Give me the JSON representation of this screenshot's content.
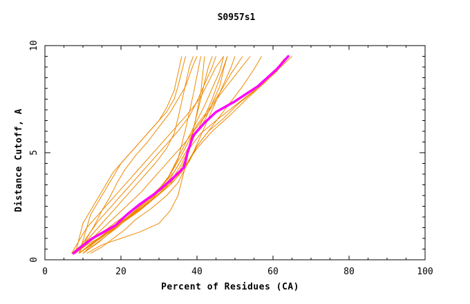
{
  "chart_data": {
    "type": "line",
    "title": "S0957s1",
    "xlabel": "Percent of Residues (CA)",
    "ylabel": "Distance Cutoff, A",
    "xlim": [
      0,
      100
    ],
    "ylim": [
      0,
      10
    ],
    "x_ticks": [
      "0",
      "20",
      "40",
      "60",
      "80",
      "100"
    ],
    "y_ticks": [
      "0",
      "5",
      "10"
    ],
    "grid": false,
    "legend": "none",
    "colors": {
      "highlight": "#ff00ff",
      "others": "#ee8800"
    },
    "highlight": {
      "x": [
        7.5,
        9.5,
        12.5,
        15.5,
        18.5,
        21.5,
        25,
        29,
        33,
        36.5,
        37.5,
        39,
        42,
        45,
        50,
        56,
        61,
        64
      ],
      "y": [
        0.3,
        0.6,
        1.0,
        1.3,
        1.6,
        2.1,
        2.6,
        3.1,
        3.7,
        4.3,
        5.0,
        5.8,
        6.4,
        6.9,
        7.4,
        8.1,
        8.9,
        9.5
      ]
    },
    "series": [
      {
        "x": [
          7,
          9,
          12,
          16,
          20,
          24,
          27,
          30,
          34,
          37,
          40,
          44,
          49,
          53,
          58,
          62,
          65
        ],
        "y": [
          0.3,
          0.6,
          1.0,
          1.4,
          1.8,
          2.2,
          2.7,
          3.2,
          3.7,
          4.4,
          5.2,
          6.0,
          6.8,
          7.5,
          8.3,
          9.0,
          9.5
        ]
      },
      {
        "x": [
          8,
          10,
          13,
          16,
          19,
          23,
          27,
          31,
          34,
          36,
          38,
          41,
          45,
          50,
          55,
          60,
          63
        ],
        "y": [
          0.3,
          0.6,
          1.0,
          1.4,
          1.8,
          2.3,
          2.8,
          3.3,
          3.9,
          4.5,
          5.2,
          5.9,
          6.5,
          7.2,
          7.9,
          8.7,
          9.4
        ]
      },
      {
        "x": [
          9,
          11,
          14,
          17,
          21,
          25,
          29,
          32,
          35,
          38,
          40,
          43,
          47,
          51,
          56,
          61,
          64
        ],
        "y": [
          0.3,
          0.6,
          1.0,
          1.4,
          1.9,
          2.4,
          2.9,
          3.4,
          4.0,
          4.6,
          5.3,
          6.0,
          6.6,
          7.3,
          8.0,
          8.8,
          9.5
        ]
      },
      {
        "x": [
          8,
          11,
          15,
          19,
          23,
          27,
          30,
          33,
          35,
          37,
          39,
          42,
          44,
          46,
          47,
          48
        ],
        "y": [
          0.3,
          0.7,
          1.1,
          1.6,
          2.1,
          2.6,
          3.2,
          3.8,
          4.4,
          5.0,
          5.7,
          6.5,
          7.3,
          8.1,
          8.9,
          9.5
        ]
      },
      {
        "x": [
          9,
          12,
          16,
          20,
          24,
          28,
          32,
          35,
          37,
          38,
          39,
          40,
          41,
          42,
          43,
          44
        ],
        "y": [
          0.3,
          0.7,
          1.2,
          1.7,
          2.2,
          2.8,
          3.4,
          4.0,
          4.7,
          5.4,
          6.1,
          6.8,
          7.5,
          8.3,
          9.0,
          9.5
        ]
      },
      {
        "x": [
          8,
          10,
          12,
          14,
          17,
          20,
          23,
          26,
          29,
          32,
          35,
          38,
          40,
          42,
          44,
          45
        ],
        "y": [
          0.3,
          0.8,
          1.3,
          1.8,
          2.4,
          3.0,
          3.6,
          4.2,
          4.8,
          5.4,
          6.0,
          6.7,
          7.4,
          8.2,
          9.0,
          9.5
        ]
      },
      {
        "x": [
          9,
          13,
          17,
          21,
          25,
          29,
          32,
          34,
          36,
          38,
          40,
          42,
          44,
          46,
          47
        ],
        "y": [
          0.3,
          0.8,
          1.3,
          1.9,
          2.5,
          3.1,
          3.7,
          4.4,
          5.1,
          5.8,
          6.5,
          7.2,
          8.0,
          8.8,
          9.5
        ]
      },
      {
        "x": [
          10,
          14,
          18,
          22,
          26,
          30,
          33,
          35,
          36,
          37,
          38,
          39,
          40,
          41
        ],
        "y": [
          0.3,
          0.8,
          1.4,
          2.0,
          2.6,
          3.3,
          4.0,
          4.7,
          5.4,
          6.1,
          6.9,
          7.7,
          8.6,
          9.5
        ]
      },
      {
        "x": [
          7,
          9,
          11,
          14,
          17,
          20,
          23,
          26,
          29,
          32,
          35,
          38,
          41,
          43,
          45,
          47
        ],
        "y": [
          0.3,
          0.9,
          1.5,
          2.1,
          2.7,
          3.3,
          3.9,
          4.5,
          5.1,
          5.7,
          6.3,
          6.9,
          7.6,
          8.3,
          9.0,
          9.5
        ]
      },
      {
        "x": [
          10,
          13,
          16,
          19,
          22,
          25,
          28,
          31,
          34,
          36,
          38,
          40,
          42,
          44,
          46,
          48
        ],
        "y": [
          0.3,
          0.7,
          1.1,
          1.5,
          2.0,
          2.5,
          3.0,
          3.5,
          4.1,
          4.7,
          5.3,
          6.0,
          6.7,
          7.5,
          8.5,
          9.5
        ]
      },
      {
        "x": [
          12,
          15,
          18,
          21,
          24,
          28,
          32,
          35,
          37,
          39,
          41,
          43,
          45,
          47,
          49,
          50
        ],
        "y": [
          0.3,
          0.6,
          1.0,
          1.4,
          1.9,
          2.4,
          3.0,
          3.6,
          4.3,
          5.0,
          5.8,
          6.6,
          7.4,
          8.2,
          9.0,
          9.5
        ]
      },
      {
        "x": [
          11,
          15,
          20,
          25,
          30,
          33,
          35,
          36,
          37,
          38,
          39,
          40,
          41,
          42
        ],
        "y": [
          0.3,
          0.7,
          1.0,
          1.3,
          1.7,
          2.3,
          3.0,
          3.7,
          4.4,
          5.2,
          6.0,
          6.9,
          7.8,
          9.5
        ]
      },
      {
        "x": [
          9,
          12,
          15,
          18,
          22,
          26,
          29,
          32,
          34,
          36,
          38,
          40,
          43,
          46,
          49,
          52
        ],
        "y": [
          0.3,
          0.7,
          1.1,
          1.5,
          2.0,
          2.5,
          3.1,
          3.7,
          4.3,
          4.9,
          5.6,
          6.3,
          7.0,
          7.8,
          8.7,
          9.5
        ]
      },
      {
        "x": [
          8,
          10,
          13,
          16,
          19,
          22,
          25,
          28,
          31,
          34,
          37,
          40,
          43,
          46,
          50,
          54
        ],
        "y": [
          0.3,
          0.7,
          1.1,
          1.6,
          2.1,
          2.6,
          3.1,
          3.7,
          4.3,
          4.9,
          5.5,
          6.2,
          6.9,
          7.7,
          8.6,
          9.5
        ]
      },
      {
        "x": [
          10,
          13,
          17,
          21,
          25,
          29,
          33,
          36,
          38,
          40,
          43,
          46,
          49,
          52,
          55,
          57
        ],
        "y": [
          0.3,
          0.8,
          1.3,
          1.8,
          2.3,
          2.9,
          3.5,
          4.1,
          4.7,
          5.3,
          6.0,
          6.7,
          7.4,
          8.1,
          8.9,
          9.5
        ]
      },
      {
        "x": [
          9,
          11,
          13,
          15,
          17,
          19,
          21,
          24,
          27,
          30,
          33,
          35,
          37,
          38,
          39,
          40
        ],
        "y": [
          0.3,
          1.0,
          1.6,
          2.3,
          2.9,
          3.6,
          4.2,
          4.9,
          5.5,
          6.2,
          6.9,
          7.5,
          8.1,
          8.6,
          9.1,
          9.5
        ]
      },
      {
        "x": [
          8,
          11,
          14,
          17,
          20,
          23,
          26,
          29,
          32,
          34,
          35,
          36,
          37,
          38,
          39
        ],
        "y": [
          0.3,
          0.9,
          1.5,
          2.1,
          2.7,
          3.3,
          3.9,
          4.5,
          5.2,
          5.9,
          6.6,
          7.4,
          8.2,
          9.0,
          9.5
        ]
      },
      {
        "x": [
          9,
          10,
          11,
          12,
          14,
          16,
          18,
          20,
          23,
          26,
          29,
          32,
          34,
          35,
          36,
          37
        ],
        "y": [
          0.3,
          0.9,
          1.5,
          2.1,
          2.7,
          3.3,
          3.9,
          4.5,
          5.1,
          5.7,
          6.3,
          6.9,
          7.5,
          8.1,
          8.8,
          9.5
        ]
      },
      {
        "x": [
          8,
          9,
          10,
          12,
          14,
          16,
          18,
          21,
          24,
          27,
          30,
          32,
          34,
          35,
          36
        ],
        "y": [
          0.3,
          1.0,
          1.7,
          2.3,
          2.9,
          3.5,
          4.1,
          4.7,
          5.3,
          5.9,
          6.5,
          7.1,
          7.9,
          8.7,
          9.5
        ]
      }
    ]
  }
}
